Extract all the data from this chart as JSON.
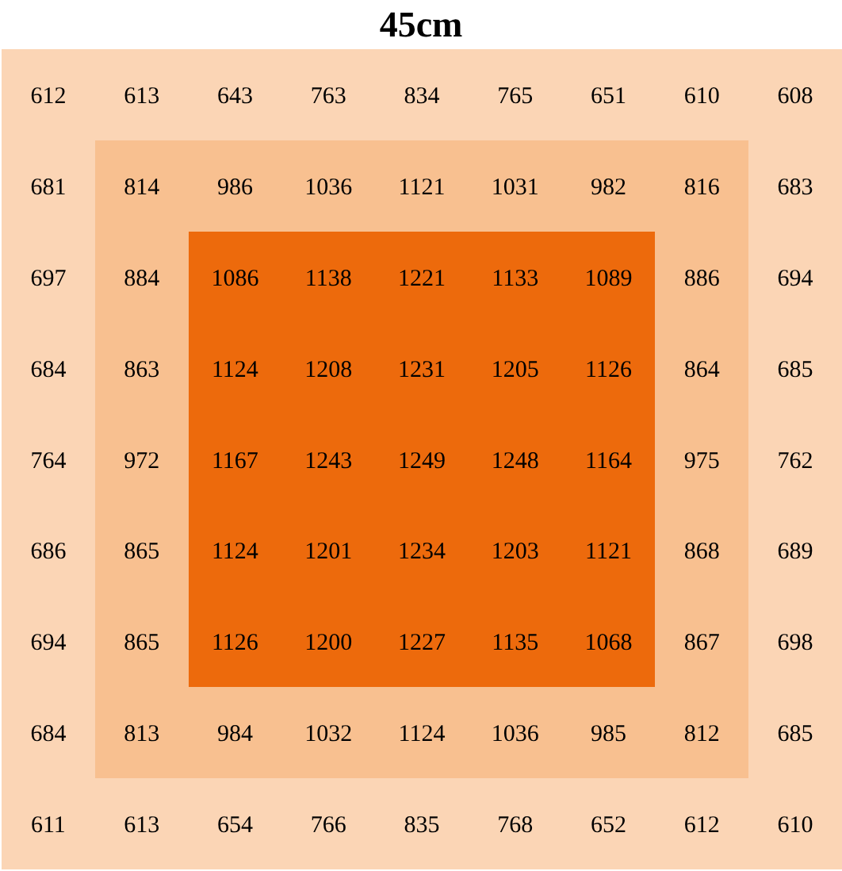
{
  "chart_data": {
    "type": "heatmap",
    "title": "45cm",
    "categories": [
      null,
      null,
      null,
      null,
      null,
      null,
      null,
      null,
      null
    ],
    "y_categories": [
      null,
      null,
      null,
      null,
      null,
      null,
      null,
      null,
      null
    ],
    "cells": [
      [
        612,
        613,
        643,
        763,
        834,
        765,
        651,
        610,
        608
      ],
      [
        681,
        814,
        986,
        1036,
        1121,
        1031,
        982,
        816,
        683
      ],
      [
        697,
        884,
        1086,
        1138,
        1221,
        1133,
        1089,
        886,
        694
      ],
      [
        684,
        863,
        1124,
        1208,
        1231,
        1205,
        1126,
        864,
        685
      ],
      [
        764,
        972,
        1167,
        1243,
        1249,
        1248,
        1164,
        975,
        762
      ],
      [
        686,
        865,
        1124,
        1201,
        1234,
        1203,
        1121,
        868,
        689
      ],
      [
        694,
        865,
        1126,
        1200,
        1227,
        1135,
        1068,
        867,
        698
      ],
      [
        684,
        813,
        984,
        1032,
        1124,
        1036,
        985,
        812,
        685
      ],
      [
        611,
        613,
        654,
        766,
        835,
        768,
        652,
        612,
        610
      ]
    ],
    "colors": [
      [
        "#fbd5b5",
        "#fbd5b5",
        "#fbd5b5",
        "#fbd5b5",
        "#fbd5b5",
        "#fbd5b5",
        "#fbd5b5",
        "#fbd5b5",
        "#fbd5b5"
      ],
      [
        "#fbd5b5",
        "#f8c090",
        "#f8c090",
        "#f8c090",
        "#f8c090",
        "#f8c090",
        "#f8c090",
        "#f8c090",
        "#fbd5b5"
      ],
      [
        "#fbd5b5",
        "#f8c090",
        "#ed6a0c",
        "#ed6a0c",
        "#ed6a0c",
        "#ed6a0c",
        "#ed6a0c",
        "#f8c090",
        "#fbd5b5"
      ],
      [
        "#fbd5b5",
        "#f8c090",
        "#ed6a0c",
        "#ed6a0c",
        "#ed6a0c",
        "#ed6a0c",
        "#ed6a0c",
        "#f8c090",
        "#fbd5b5"
      ],
      [
        "#fbd5b5",
        "#f8c090",
        "#ed6a0c",
        "#ed6a0c",
        "#ed6a0c",
        "#ed6a0c",
        "#ed6a0c",
        "#f8c090",
        "#fbd5b5"
      ],
      [
        "#fbd5b5",
        "#f8c090",
        "#ed6a0c",
        "#ed6a0c",
        "#ed6a0c",
        "#ed6a0c",
        "#ed6a0c",
        "#f8c090",
        "#fbd5b5"
      ],
      [
        "#fbd5b5",
        "#f8c090",
        "#ed6a0c",
        "#ed6a0c",
        "#ed6a0c",
        "#ed6a0c",
        "#ed6a0c",
        "#f8c090",
        "#fbd5b5"
      ],
      [
        "#fbd5b5",
        "#f8c090",
        "#f8c090",
        "#f8c090",
        "#f8c090",
        "#f8c090",
        "#f8c090",
        "#f8c090",
        "#fbd5b5"
      ],
      [
        "#fbd5b5",
        "#fbd5b5",
        "#fbd5b5",
        "#fbd5b5",
        "#fbd5b5",
        "#fbd5b5",
        "#fbd5b5",
        "#fbd5b5",
        "#fbd5b5"
      ]
    ],
    "data_labels": true
  }
}
